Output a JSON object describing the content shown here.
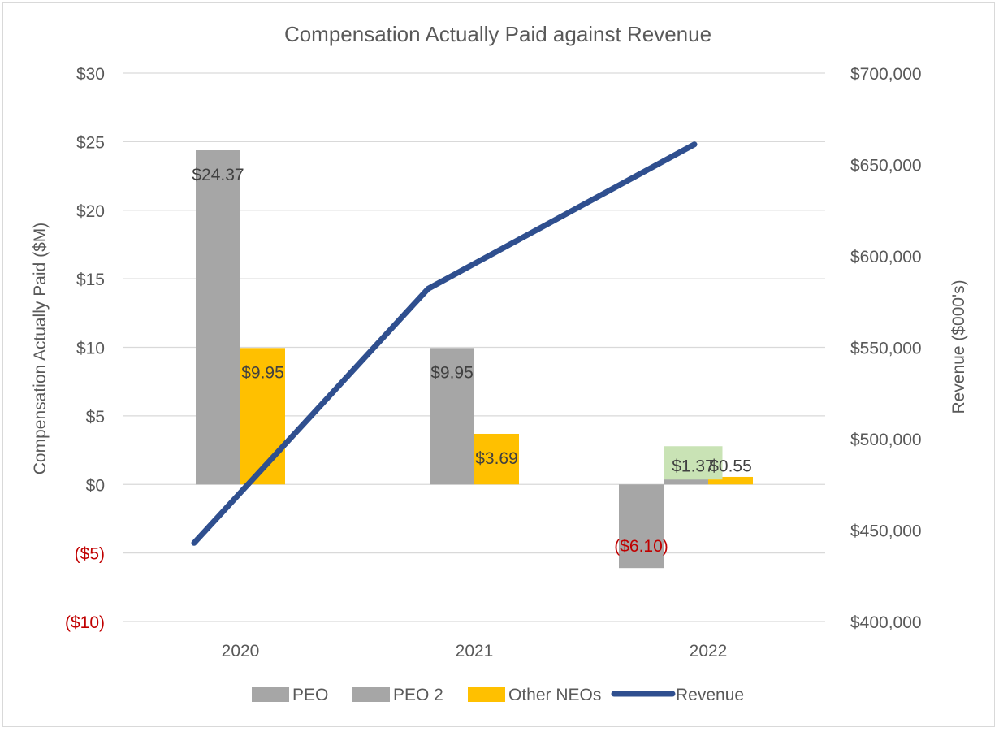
{
  "chart_data": {
    "type": "bar",
    "title": "Compensation Actually Paid against Revenue",
    "categories": [
      "2020",
      "2021",
      "2022"
    ],
    "series": [
      {
        "name": "PEO",
        "kind": "bar",
        "axis": "left",
        "color": "#a6a6a6",
        "values": [
          24.37,
          9.95,
          -6.1
        ],
        "labels": [
          "$24.37",
          "$9.95",
          "($6.10)"
        ]
      },
      {
        "name": "PEO 2",
        "kind": "bar",
        "axis": "left",
        "color": "#a6a6a6",
        "values": [
          null,
          null,
          1.37
        ],
        "labels": [
          null,
          null,
          "$1.37"
        ]
      },
      {
        "name": "Other NEOs",
        "kind": "bar",
        "axis": "left",
        "color": "#ffc000",
        "values": [
          9.95,
          3.69,
          0.55
        ],
        "labels": [
          "$9.95",
          "$3.69",
          "$0.55"
        ]
      },
      {
        "name": "Revenue",
        "kind": "line",
        "axis": "right",
        "color": "#2f4f8f",
        "values": [
          443000,
          582000,
          661000
        ]
      }
    ],
    "y_left": {
      "label": "Compensation Actually Paid ($M)",
      "lim": [
        -10,
        30
      ],
      "ticks": [
        30,
        25,
        20,
        15,
        10,
        5,
        0,
        -5,
        -10
      ],
      "tick_labels": [
        "$30",
        "$25",
        "$20",
        "$15",
        "$10",
        "$5",
        "$0",
        "($5)",
        "($10)"
      ]
    },
    "y_right": {
      "label": "Revenue ($000's)",
      "lim": [
        400000,
        700000
      ],
      "ticks": [
        700000,
        650000,
        600000,
        550000,
        500000,
        450000,
        400000
      ],
      "tick_labels": [
        "$700,000",
        "$650,000",
        "$600,000",
        "$550,000",
        "$500,000",
        "$450,000",
        "$400,000"
      ]
    },
    "grid": true,
    "legend_position": "bottom",
    "label_highlight_color": "#c9e3b5",
    "negative_label_color": "#c00000"
  }
}
